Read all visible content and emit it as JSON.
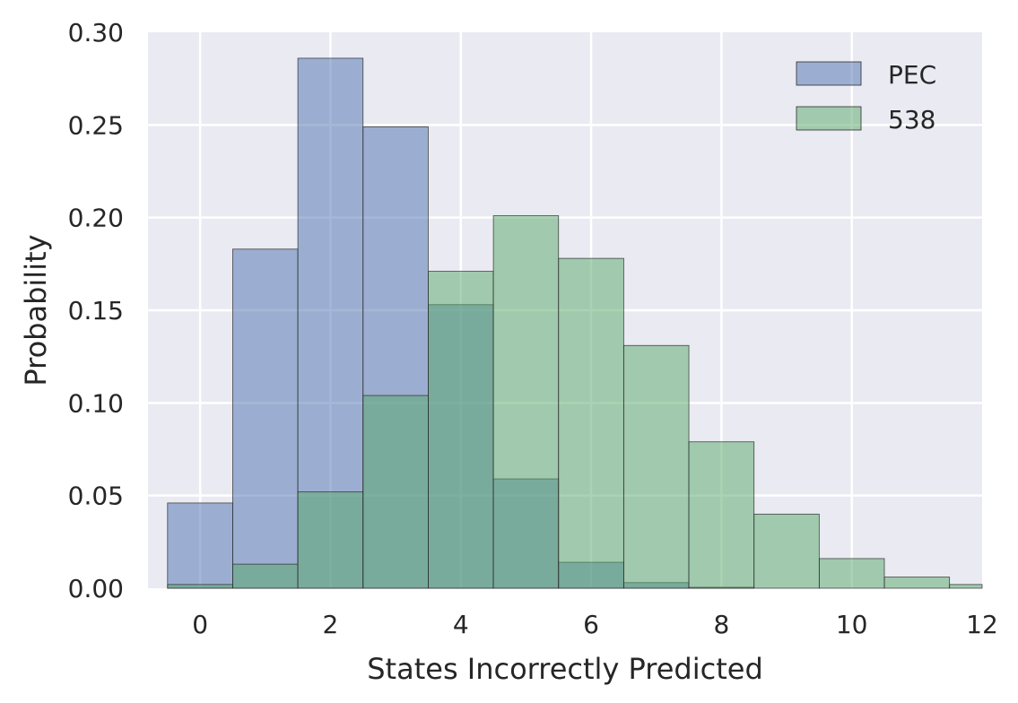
{
  "chart_data": {
    "type": "bar",
    "title": "",
    "xlabel": "States Incorrectly Predicted",
    "ylabel": "Probability",
    "xlim": [
      -0.8,
      12
    ],
    "ylim": [
      0,
      0.3
    ],
    "x_ticks": [
      0,
      2,
      4,
      6,
      8,
      10,
      12
    ],
    "x_tick_labels": [
      "0",
      "2",
      "4",
      "6",
      "8",
      "10",
      "12"
    ],
    "y_ticks": [
      0.0,
      0.05,
      0.1,
      0.15,
      0.2,
      0.25,
      0.3
    ],
    "y_tick_labels": [
      "0.00",
      "0.05",
      "0.10",
      "0.15",
      "0.20",
      "0.25",
      "0.30"
    ],
    "grid": true,
    "legend_position": "top-right",
    "bin_width": 1,
    "series": [
      {
        "name": "PEC",
        "color": "#4c72b0",
        "opacity": 0.5,
        "x": [
          0,
          1,
          2,
          3,
          4,
          5,
          6,
          7,
          8
        ],
        "values": [
          0.046,
          0.183,
          0.286,
          0.249,
          0.153,
          0.059,
          0.014,
          0.003,
          0.0005
        ]
      },
      {
        "name": "538",
        "color": "#55a868",
        "opacity": 0.5,
        "x": [
          0,
          1,
          2,
          3,
          4,
          5,
          6,
          7,
          8,
          9,
          10,
          11,
          12
        ],
        "values": [
          0.002,
          0.013,
          0.052,
          0.104,
          0.171,
          0.201,
          0.178,
          0.131,
          0.079,
          0.04,
          0.016,
          0.006,
          0.002
        ]
      }
    ]
  }
}
